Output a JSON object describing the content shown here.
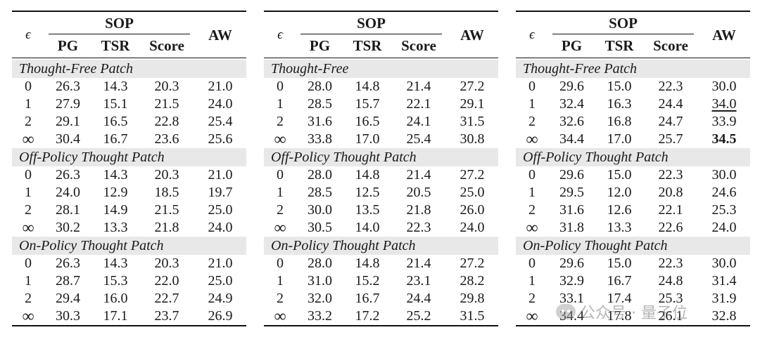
{
  "headers": {
    "eps": "ϵ",
    "sop": "SOP",
    "aw": "AW",
    "pg": "PG",
    "tsr": "TSR",
    "score": "Score"
  },
  "panels": [
    {
      "sections": [
        {
          "title": "Thought-Free Patch",
          "rows": [
            {
              "eps": "0",
              "pg": "26.3",
              "tsr": "14.3",
              "score": "20.3",
              "aw": "21.0"
            },
            {
              "eps": "1",
              "pg": "27.9",
              "tsr": "15.1",
              "score": "21.5",
              "aw": "24.0"
            },
            {
              "eps": "2",
              "pg": "29.1",
              "tsr": "16.5",
              "score": "22.8",
              "aw": "25.4"
            },
            {
              "eps": "∞",
              "pg": "30.4",
              "tsr": "16.7",
              "score": "23.6",
              "aw": "25.6"
            }
          ]
        },
        {
          "title": "Off-Policy Thought Patch",
          "rows": [
            {
              "eps": "0",
              "pg": "26.3",
              "tsr": "14.3",
              "score": "20.3",
              "aw": "21.0"
            },
            {
              "eps": "1",
              "pg": "24.0",
              "tsr": "12.9",
              "score": "18.5",
              "aw": "19.7"
            },
            {
              "eps": "2",
              "pg": "28.1",
              "tsr": "14.9",
              "score": "21.5",
              "aw": "25.0"
            },
            {
              "eps": "∞",
              "pg": "30.2",
              "tsr": "13.3",
              "score": "21.8",
              "aw": "24.0"
            }
          ]
        },
        {
          "title": "On-Policy Thought Patch",
          "rows": [
            {
              "eps": "0",
              "pg": "26.3",
              "tsr": "14.3",
              "score": "20.3",
              "aw": "21.0"
            },
            {
              "eps": "1",
              "pg": "28.7",
              "tsr": "15.3",
              "score": "22.0",
              "aw": "25.0"
            },
            {
              "eps": "2",
              "pg": "29.4",
              "tsr": "16.0",
              "score": "22.7",
              "aw": "24.9"
            },
            {
              "eps": "∞",
              "pg": "30.3",
              "tsr": "17.1",
              "score": "23.7",
              "aw": "26.9"
            }
          ]
        }
      ]
    },
    {
      "sections": [
        {
          "title": "Thought-Free",
          "rows": [
            {
              "eps": "0",
              "pg": "28.0",
              "tsr": "14.8",
              "score": "21.4",
              "aw": "27.2"
            },
            {
              "eps": "1",
              "pg": "28.5",
              "tsr": "15.7",
              "score": "22.1",
              "aw": "29.1"
            },
            {
              "eps": "2",
              "pg": "31.6",
              "tsr": "16.5",
              "score": "24.1",
              "aw": "31.5"
            },
            {
              "eps": "∞",
              "pg": "33.8",
              "tsr": "17.0",
              "score": "25.4",
              "aw": "30.8"
            }
          ]
        },
        {
          "title": "Off-Policy Thought Patch",
          "rows": [
            {
              "eps": "0",
              "pg": "28.0",
              "tsr": "14.8",
              "score": "21.4",
              "aw": "27.2"
            },
            {
              "eps": "1",
              "pg": "28.5",
              "tsr": "12.5",
              "score": "20.5",
              "aw": "25.0"
            },
            {
              "eps": "2",
              "pg": "30.0",
              "tsr": "13.5",
              "score": "21.8",
              "aw": "26.0"
            },
            {
              "eps": "∞",
              "pg": "30.5",
              "tsr": "14.0",
              "score": "22.3",
              "aw": "24.0"
            }
          ]
        },
        {
          "title": "On-Policy Thought Patch",
          "rows": [
            {
              "eps": "0",
              "pg": "28.0",
              "tsr": "14.8",
              "score": "21.4",
              "aw": "27.2"
            },
            {
              "eps": "1",
              "pg": "31.0",
              "tsr": "15.2",
              "score": "23.1",
              "aw": "28.2"
            },
            {
              "eps": "2",
              "pg": "32.0",
              "tsr": "16.7",
              "score": "24.4",
              "aw": "29.8"
            },
            {
              "eps": "∞",
              "pg": "33.2",
              "tsr": "17.2",
              "score": "25.2",
              "aw": "31.5"
            }
          ]
        }
      ]
    },
    {
      "sections": [
        {
          "title": "Thought-Free Patch",
          "rows": [
            {
              "eps": "0",
              "pg": "29.6",
              "tsr": "15.0",
              "score": "22.3",
              "aw": "30.0"
            },
            {
              "eps": "1",
              "pg": "32.4",
              "tsr": "16.3",
              "score": "24.4",
              "aw": "34.0",
              "aw_underline": true
            },
            {
              "eps": "2",
              "pg": "32.6",
              "tsr": "16.8",
              "score": "24.7",
              "aw": "33.9"
            },
            {
              "eps": "∞",
              "pg": "34.4",
              "tsr": "17.0",
              "score": "25.7",
              "aw": "34.5",
              "aw_bold": true
            }
          ]
        },
        {
          "title": "Off-Policy Thought Patch",
          "rows": [
            {
              "eps": "0",
              "pg": "29.6",
              "tsr": "15.0",
              "score": "22.3",
              "aw": "30.0"
            },
            {
              "eps": "1",
              "pg": "29.5",
              "tsr": "12.0",
              "score": "20.8",
              "aw": "24.6"
            },
            {
              "eps": "2",
              "pg": "31.6",
              "tsr": "12.6",
              "score": "22.1",
              "aw": "25.3"
            },
            {
              "eps": "∞",
              "pg": "31.8",
              "tsr": "13.3",
              "score": "22.6",
              "aw": "24.0"
            }
          ]
        },
        {
          "title": "On-Policy Thought Patch",
          "rows": [
            {
              "eps": "0",
              "pg": "29.6",
              "tsr": "15.0",
              "score": "22.3",
              "aw": "30.0"
            },
            {
              "eps": "1",
              "pg": "32.9",
              "tsr": "16.7",
              "score": "24.8",
              "aw": "31.4"
            },
            {
              "eps": "2",
              "pg": "33.1",
              "tsr": "17.4",
              "score": "25.3",
              "aw": "31.9"
            },
            {
              "eps": "∞",
              "pg": "34.4",
              "tsr": "17.8",
              "score": "26.1",
              "aw": "32.8"
            }
          ]
        }
      ]
    }
  ],
  "watermark": {
    "text": "公众号 · 量子位",
    "icon": "wechat-icon"
  }
}
